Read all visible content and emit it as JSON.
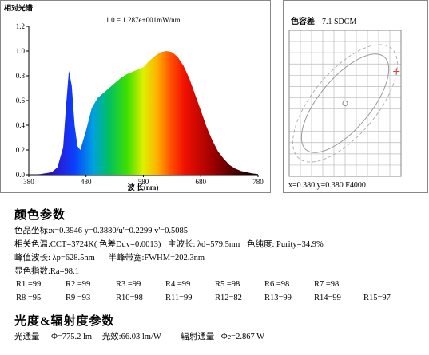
{
  "spectrum": {
    "ylabel": "相对光谱",
    "header": "1.0 = 1.287e+001mW/nm",
    "xlabel": "波 长(nm)",
    "y_ticks": [
      "1.2",
      "1.0",
      "0.8",
      "0.6",
      "0.4",
      "0.2",
      "0.0"
    ],
    "x_ticks": [
      "380",
      "480",
      "580",
      "680",
      "780"
    ]
  },
  "sdcm": {
    "title": "色容差",
    "value": "7.1 SDCM",
    "footer": "x=0.380 y=0.380 F4000"
  },
  "chart_data": [
    {
      "type": "area",
      "title": "相对光谱",
      "subtitle": "1.0 = 1.287e+001mW/nm",
      "xlabel": "波 长(nm)",
      "ylabel": "",
      "xlim": [
        380,
        780
      ],
      "ylim": [
        0,
        1.2
      ],
      "grid": false,
      "series": [
        {
          "x": [
            380,
            400,
            420,
            430,
            440,
            445,
            450,
            455,
            460,
            465,
            470,
            480,
            490,
            500,
            510,
            520,
            530,
            540,
            550,
            560,
            570,
            580,
            590,
            600,
            610,
            620,
            630,
            640,
            650,
            660,
            670,
            680,
            690,
            700,
            710,
            720,
            730,
            740,
            750,
            760,
            770,
            780
          ],
          "y": [
            0.0,
            0.005,
            0.02,
            0.06,
            0.22,
            0.55,
            0.84,
            0.72,
            0.4,
            0.23,
            0.2,
            0.36,
            0.54,
            0.62,
            0.66,
            0.7,
            0.74,
            0.78,
            0.81,
            0.83,
            0.85,
            0.87,
            0.92,
            0.96,
            0.99,
            1.0,
            0.99,
            0.95,
            0.88,
            0.78,
            0.65,
            0.52,
            0.39,
            0.28,
            0.19,
            0.13,
            0.08,
            0.05,
            0.03,
            0.02,
            0.01,
            0.005
          ]
        }
      ]
    },
    {
      "type": "scatter",
      "title": "色容差 7.1 SDCM",
      "xlabel": "x=0.380",
      "ylabel": "y=0.380",
      "series": [
        {
          "name": "F4000",
          "x": [
            0.38
          ],
          "y": [
            0.38
          ]
        },
        {
          "x": [
            0.3946
          ],
          "y": [
            0.388
          ]
        }
      ]
    }
  ],
  "color_params": {
    "heading": "颜色参数",
    "line1": "色品坐标:x=0.3946  y=0.3880/u'=0.2299  v'=0.5085",
    "line2_a": "相关色温:CCT=3724K( 色差Duv=0.0013)",
    "line2_b": "主波长: λd=579.5nm",
    "line2_c": "色纯度: Purity=34.9%",
    "line3_a": "峰值波长: λp=628.5nm",
    "line3_b": "半峰带宽:FWHM=202.3nm",
    "line4": "显色指数:Ra=98.1",
    "ri_row1": [
      "R1 =99",
      "R2 =99",
      "R3 =99",
      "R4 =99",
      "R5 =98",
      "R6 =98",
      "R7 =98"
    ],
    "ri_row2": [
      "R8 =95",
      "R9 =93",
      "R10=98",
      "R11=99",
      "R12=82",
      "R13=99",
      "R14=99",
      "R15=97"
    ]
  },
  "photometric": {
    "heading": "光度&辐射度参数",
    "flux_label": "光通量",
    "flux_value": "Φ=775.2 lm",
    "efficacy": "光效:66.03 lm/W",
    "radiant_label": "辐射通量",
    "radiant_value": "Φe=2.867 W"
  }
}
